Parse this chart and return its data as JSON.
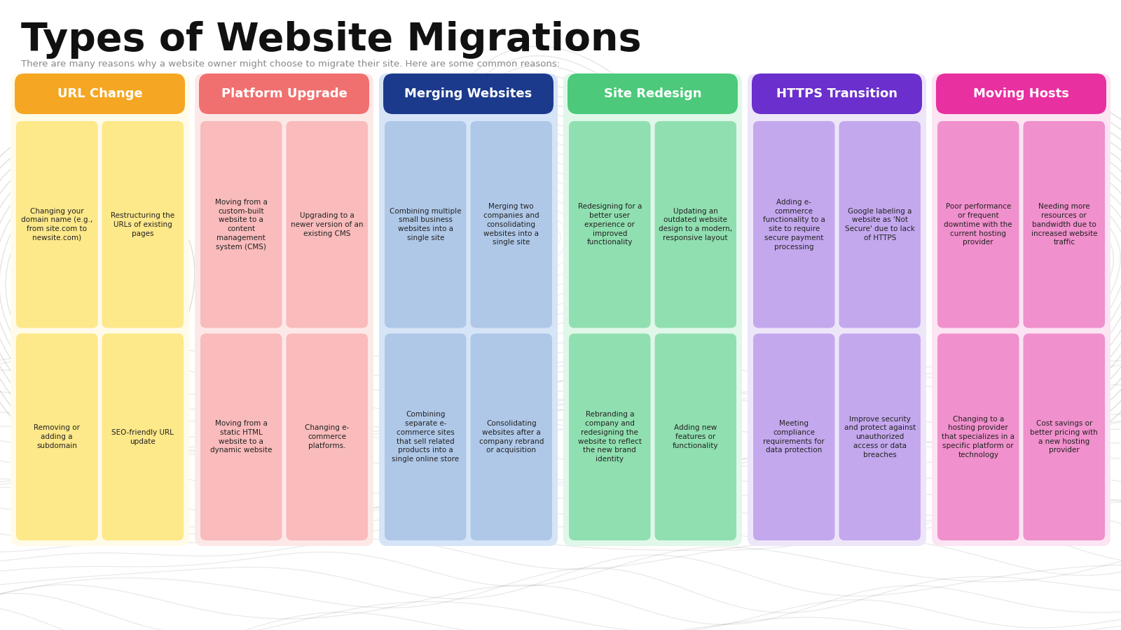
{
  "title": "Types of Website Migrations",
  "subtitle": "There are many reasons why a website owner might choose to migrate their site. Here are some common reasons:",
  "background_color": "#ffffff",
  "columns": [
    {
      "header": "URL Change",
      "header_color": "#F5A623",
      "cell_color": "#FDE88A",
      "bg_color": "#FFFBE8",
      "text_color": "#222222",
      "header_text_color": "#ffffff",
      "cells": [
        "Changing your\ndomain name (e.g.,\nfrom site.com to\nnewsite.com)",
        "Restructuring the\nURLs of existing\npages",
        "Removing or\nadding a\nsubdomain",
        "SEO-friendly URL\nupdate"
      ]
    },
    {
      "header": "Platform Upgrade",
      "header_color": "#F07070",
      "cell_color": "#F9BBBB",
      "bg_color": "#FDE8E8",
      "text_color": "#222222",
      "header_text_color": "#ffffff",
      "cells": [
        "Moving from a\ncustom-built\nwebsite to a\ncontent\nmanagement\nsystem (CMS)",
        "Upgrading to a\nnewer version of an\nexisting CMS",
        "Moving from a\nstatic HTML\nwebsite to a\ndynamic website",
        "Changing e-\ncommerce\nplatforms."
      ]
    },
    {
      "header": "Merging Websites",
      "header_color": "#1C3A8C",
      "cell_color": "#AFC8E8",
      "bg_color": "#D6E4F7",
      "text_color": "#222222",
      "header_text_color": "#ffffff",
      "cells": [
        "Combining multiple\nsmall business\nwebsites into a\nsingle site",
        "Merging two\ncompanies and\nconsolidating\nwebsites into a\nsingle site",
        "Combining\nseparate e-\ncommerce sites\nthat sell related\nproducts into a\nsingle online store",
        "Consolidating\nwebsites after a\ncompany rebrand\nor acquisition"
      ]
    },
    {
      "header": "Site Redesign",
      "header_color": "#4CC97A",
      "cell_color": "#90DFB0",
      "bg_color": "#E0F7EA",
      "text_color": "#222222",
      "header_text_color": "#ffffff",
      "cells": [
        "Redesigning for a\nbetter user\nexperience or\nimproved\nfunctionality",
        "Updating an\noutdated website\ndesign to a modern,\nresponsive layout",
        "Rebranding a\ncompany and\nredesigning the\nwebsite to reflect\nthe new brand\nidentity",
        "Adding new\nfeatures or\nfunctionality"
      ]
    },
    {
      "header": "HTTPS Transition",
      "header_color": "#6A2FCC",
      "cell_color": "#C4A8EE",
      "bg_color": "#EDE6F9",
      "text_color": "#222222",
      "header_text_color": "#ffffff",
      "cells": [
        "Adding e-\ncommerce\nfunctionality to a\nsite to require\nsecure payment\nprocessing",
        "Google labeling a\nwebsite as 'Not\nSecure' due to lack\nof HTTPS",
        "Meeting\ncompliance\nrequirements for\ndata protection",
        "Improve security\nand protect against\nunauthorized\naccess or data\nbreaches"
      ]
    },
    {
      "header": "Moving Hosts",
      "header_color": "#E830A0",
      "cell_color": "#F090CC",
      "bg_color": "#FCE4F3",
      "text_color": "#222222",
      "header_text_color": "#ffffff",
      "cells": [
        "Poor performance\nor frequent\ndowntime with the\ncurrent hosting\nprovider",
        "Needing more\nresources or\nbandwidth due to\nincreased website\ntraffic",
        "Changing to a\nhosting provider\nthat specializes in a\nspecific platform or\ntechnology",
        "Cost savings or\nbetter pricing with\na new hosting\nprovider"
      ]
    }
  ]
}
